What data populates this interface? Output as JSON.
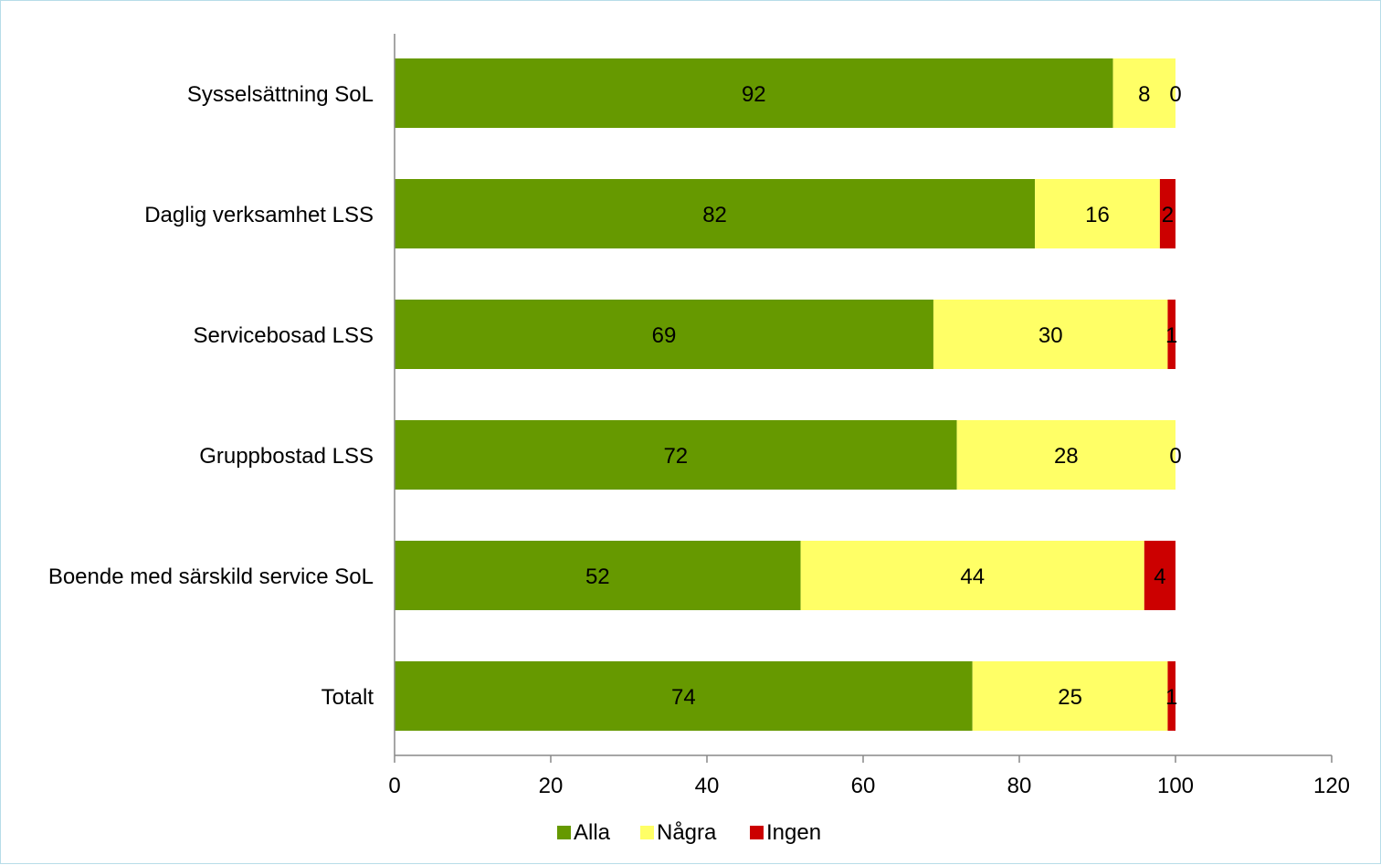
{
  "chart_data": {
    "type": "bar",
    "orientation": "horizontal",
    "stacked": true,
    "categories": [
      "Sysselsättning SoL",
      "Daglig verksamhet LSS",
      "Servicebosad LSS",
      "Gruppbostad LSS",
      "Boende med särskild service SoL",
      "Totalt"
    ],
    "series": [
      {
        "name": "Alla",
        "color": "#669900",
        "values": [
          92,
          82,
          69,
          72,
          52,
          74
        ]
      },
      {
        "name": "Några",
        "color": "#ffff66",
        "values": [
          8,
          16,
          30,
          28,
          44,
          25
        ]
      },
      {
        "name": "Ingen",
        "color": "#cc0000",
        "values": [
          0,
          2,
          1,
          0,
          4,
          1
        ]
      }
    ],
    "xlim": [
      0,
      120
    ],
    "xticks": [
      0,
      20,
      40,
      60,
      80,
      100,
      120
    ],
    "data_labels": true,
    "grid": false,
    "legend_position": "bottom",
    "title": "",
    "xlabel": "",
    "ylabel": ""
  }
}
